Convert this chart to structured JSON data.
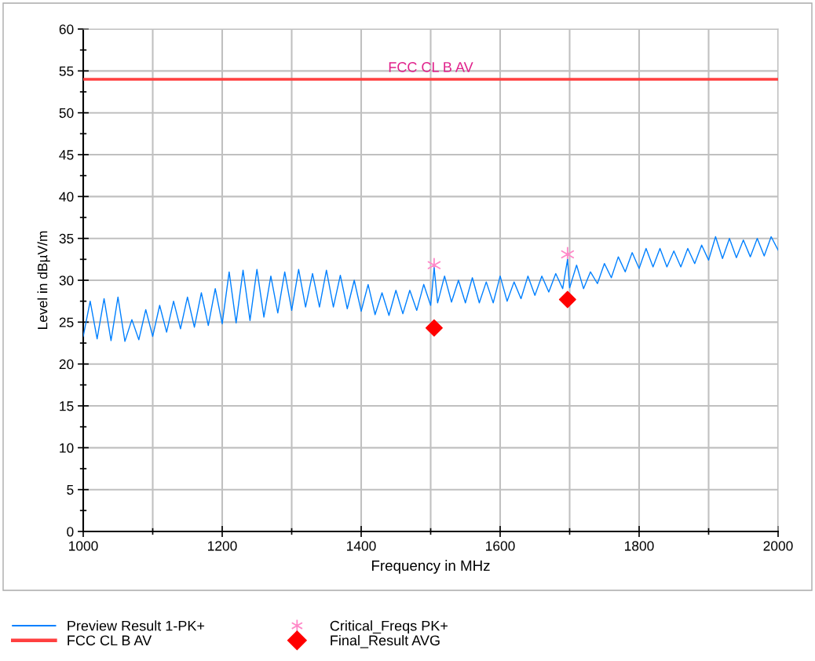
{
  "chart_data": {
    "type": "line",
    "xlabel": "Frequency in MHz",
    "ylabel": "Level in dBµV/m",
    "xlim": [
      1000,
      2000
    ],
    "ylim": [
      0,
      60
    ],
    "xticks": [
      1000,
      {
        "value": 1100,
        "label": null
      },
      1200,
      {
        "value": 1300,
        "label": null
      },
      1400,
      {
        "value": 1500,
        "label": null
      },
      1600,
      {
        "value": 1700,
        "label": null
      },
      1800,
      {
        "value": 1900,
        "label": null
      },
      2000
    ],
    "yticks": [
      0,
      {
        "value": 2.5,
        "label": null
      },
      5,
      {
        "value": 7.5,
        "label": null
      },
      10,
      {
        "value": 12.5,
        "label": null
      },
      15,
      {
        "value": 17.5,
        "label": null
      },
      20,
      {
        "value": 22.5,
        "label": null
      },
      25,
      {
        "value": 27.5,
        "label": null
      },
      30,
      {
        "value": 32.5,
        "label": null
      },
      35,
      {
        "value": 37.5,
        "label": null
      },
      40,
      {
        "value": 42.5,
        "label": null
      },
      45,
      {
        "value": 47.5,
        "label": null
      },
      50,
      {
        "value": 52.5,
        "label": null
      },
      55,
      {
        "value": 57.5,
        "label": null
      },
      60
    ],
    "grid": true,
    "legend": "bottom",
    "series": [
      {
        "name": "Preview Result 1-PK+",
        "color": "#0080ff",
        "x": [
          1000,
          1010,
          1020,
          1030,
          1040,
          1050,
          1060,
          1070,
          1080,
          1090,
          1100,
          1110,
          1120,
          1130,
          1140,
          1150,
          1160,
          1170,
          1180,
          1190,
          1200,
          1210,
          1220,
          1230,
          1240,
          1250,
          1260,
          1270,
          1280,
          1290,
          1300,
          1310,
          1320,
          1330,
          1340,
          1350,
          1360,
          1370,
          1380,
          1390,
          1400,
          1410,
          1420,
          1430,
          1440,
          1450,
          1460,
          1470,
          1480,
          1490,
          1500,
          1505,
          1510,
          1520,
          1530,
          1540,
          1550,
          1560,
          1570,
          1580,
          1590,
          1600,
          1610,
          1620,
          1630,
          1640,
          1650,
          1660,
          1670,
          1680,
          1690,
          1697,
          1700,
          1710,
          1720,
          1730,
          1740,
          1750,
          1760,
          1770,
          1780,
          1790,
          1800,
          1810,
          1820,
          1830,
          1840,
          1850,
          1860,
          1870,
          1880,
          1890,
          1900,
          1910,
          1920,
          1930,
          1940,
          1950,
          1960,
          1970,
          1980,
          1990,
          2000
        ],
        "values": [
          23.3,
          27.5,
          23.0,
          27.8,
          22.8,
          28.0,
          22.7,
          25.3,
          22.9,
          26.5,
          23.3,
          27.0,
          23.8,
          27.5,
          24.2,
          28.0,
          24.4,
          28.5,
          24.6,
          29.0,
          24.8,
          31.0,
          24.9,
          31.2,
          25.2,
          31.3,
          25.6,
          30.5,
          26.1,
          31.0,
          26.4,
          31.3,
          26.8,
          30.8,
          26.8,
          31.2,
          26.8,
          30.6,
          26.6,
          30.0,
          26.3,
          29.5,
          25.9,
          28.5,
          25.8,
          28.8,
          26.0,
          28.8,
          26.4,
          29.5,
          27.0,
          31.5,
          27.3,
          30.5,
          27.4,
          30.0,
          27.3,
          30.3,
          27.3,
          29.8,
          27.3,
          30.5,
          27.5,
          29.8,
          27.8,
          30.5,
          28.2,
          30.5,
          28.6,
          30.8,
          29.0,
          32.5,
          29.1,
          31.8,
          29.0,
          31.0,
          29.6,
          32.0,
          30.3,
          32.8,
          31.0,
          33.3,
          31.4,
          33.8,
          31.6,
          33.8,
          31.6,
          33.5,
          31.6,
          33.8,
          32.0,
          34.2,
          32.4,
          35.2,
          32.6,
          35.0,
          32.7,
          34.8,
          32.8,
          35.0,
          32.9,
          35.2,
          33.6
        ]
      },
      {
        "name": "FCC CL B AV",
        "color": "#ff4040",
        "x": [
          1000,
          2000
        ],
        "values": [
          54,
          54
        ]
      },
      {
        "name": "Critical_Freqs PK+",
        "type": "scatter",
        "marker": "cross",
        "color": "#ff88c8",
        "x": [
          1505,
          1697
        ],
        "values": [
          31.8,
          33.1
        ]
      },
      {
        "name": "Final_Result AVG",
        "type": "scatter",
        "marker": "diamond",
        "color": "#ff0000",
        "x": [
          1505,
          1697
        ],
        "values": [
          24.3,
          27.7
        ]
      }
    ],
    "annotations": [
      {
        "text": "FCC CL B AV",
        "x": 1500,
        "y": 54
      }
    ]
  }
}
